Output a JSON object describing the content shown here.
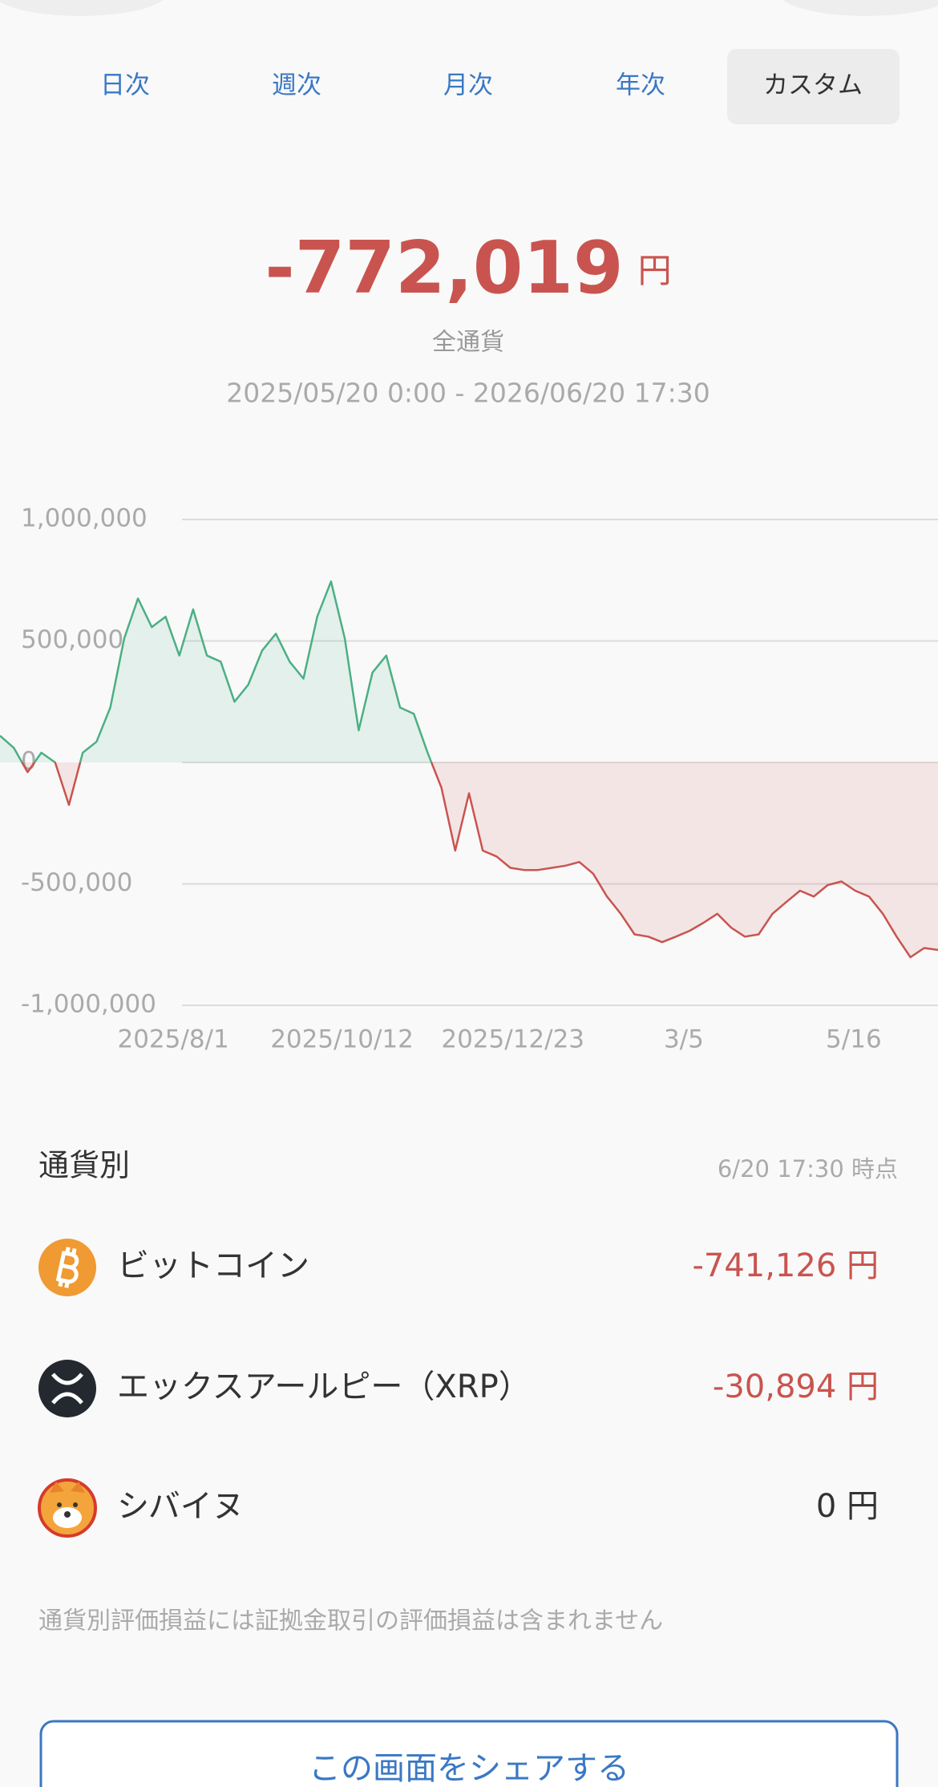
{
  "tabs": [
    "日次",
    "週次",
    "月次",
    "年次",
    "カスタム"
  ],
  "summary": {
    "amount": "-772,019",
    "unit": "円",
    "scope": "全通貨",
    "period": "2025/05/20 0:00 - 2026/06/20 17:30"
  },
  "chart_data": {
    "type": "line",
    "values": [
      110000,
      60000,
      -40000,
      40000,
      0,
      -175000,
      40000,
      85000,
      226000,
      510000,
      675000,
      557000,
      600000,
      440000,
      630000,
      440000,
      415000,
      250000,
      320000,
      460000,
      530000,
      415000,
      345000,
      600000,
      745000,
      510000,
      132000,
      370000,
      440000,
      226000,
      200000,
      40000,
      -104000,
      -363000,
      -127000,
      -363000,
      -387000,
      -434000,
      -443000,
      -443000,
      -434000,
      -425000,
      -410000,
      -458000,
      -552000,
      -623000,
      -708000,
      -717000,
      -740000,
      -717000,
      -693000,
      -660000,
      -623000,
      -680000,
      -717000,
      -708000,
      -623000,
      -575000,
      -528000,
      -552000,
      -505000,
      -490000,
      -528000,
      -552000,
      -623000,
      -717000,
      -802000,
      -764000,
      -772019
    ],
    "xlim": [
      0,
      68
    ],
    "xticks": [
      {
        "value": 12.56,
        "label": "2025/8/1"
      },
      {
        "value": 24.79,
        "label": "2025/10/12"
      },
      {
        "value": 37.18,
        "label": "2025/12/23"
      },
      {
        "value": 49.57,
        "label": "3/5"
      },
      {
        "value": 61.89,
        "label": "5/16"
      }
    ],
    "ylim": [
      -1000000,
      1000000
    ],
    "yticks": [
      {
        "value": 1000000,
        "label": "1,000,000"
      },
      {
        "value": 500000,
        "label": "500,000"
      },
      {
        "value": 0,
        "label": "0"
      },
      {
        "value": -500000,
        "label": "-500,000"
      },
      {
        "value": -1000000,
        "label": "-1,000,000"
      }
    ],
    "grid": true,
    "positive_color": "#4caf84",
    "negative_color": "#c9544f"
  },
  "breakdown": {
    "title": "通貨別",
    "as_of": "6/20 17:30 時点",
    "rows": [
      {
        "name": "ビットコイン",
        "amount": "-741,126 円"
      },
      {
        "name": "エックスアールピー（XRP）",
        "amount": "-30,894 円"
      },
      {
        "name": "シバイヌ",
        "amount": "0 円"
      }
    ]
  },
  "note": "通貨別評価損益には証拠金取引の評価損益は含まれません",
  "button": "この画面をシェアする"
}
